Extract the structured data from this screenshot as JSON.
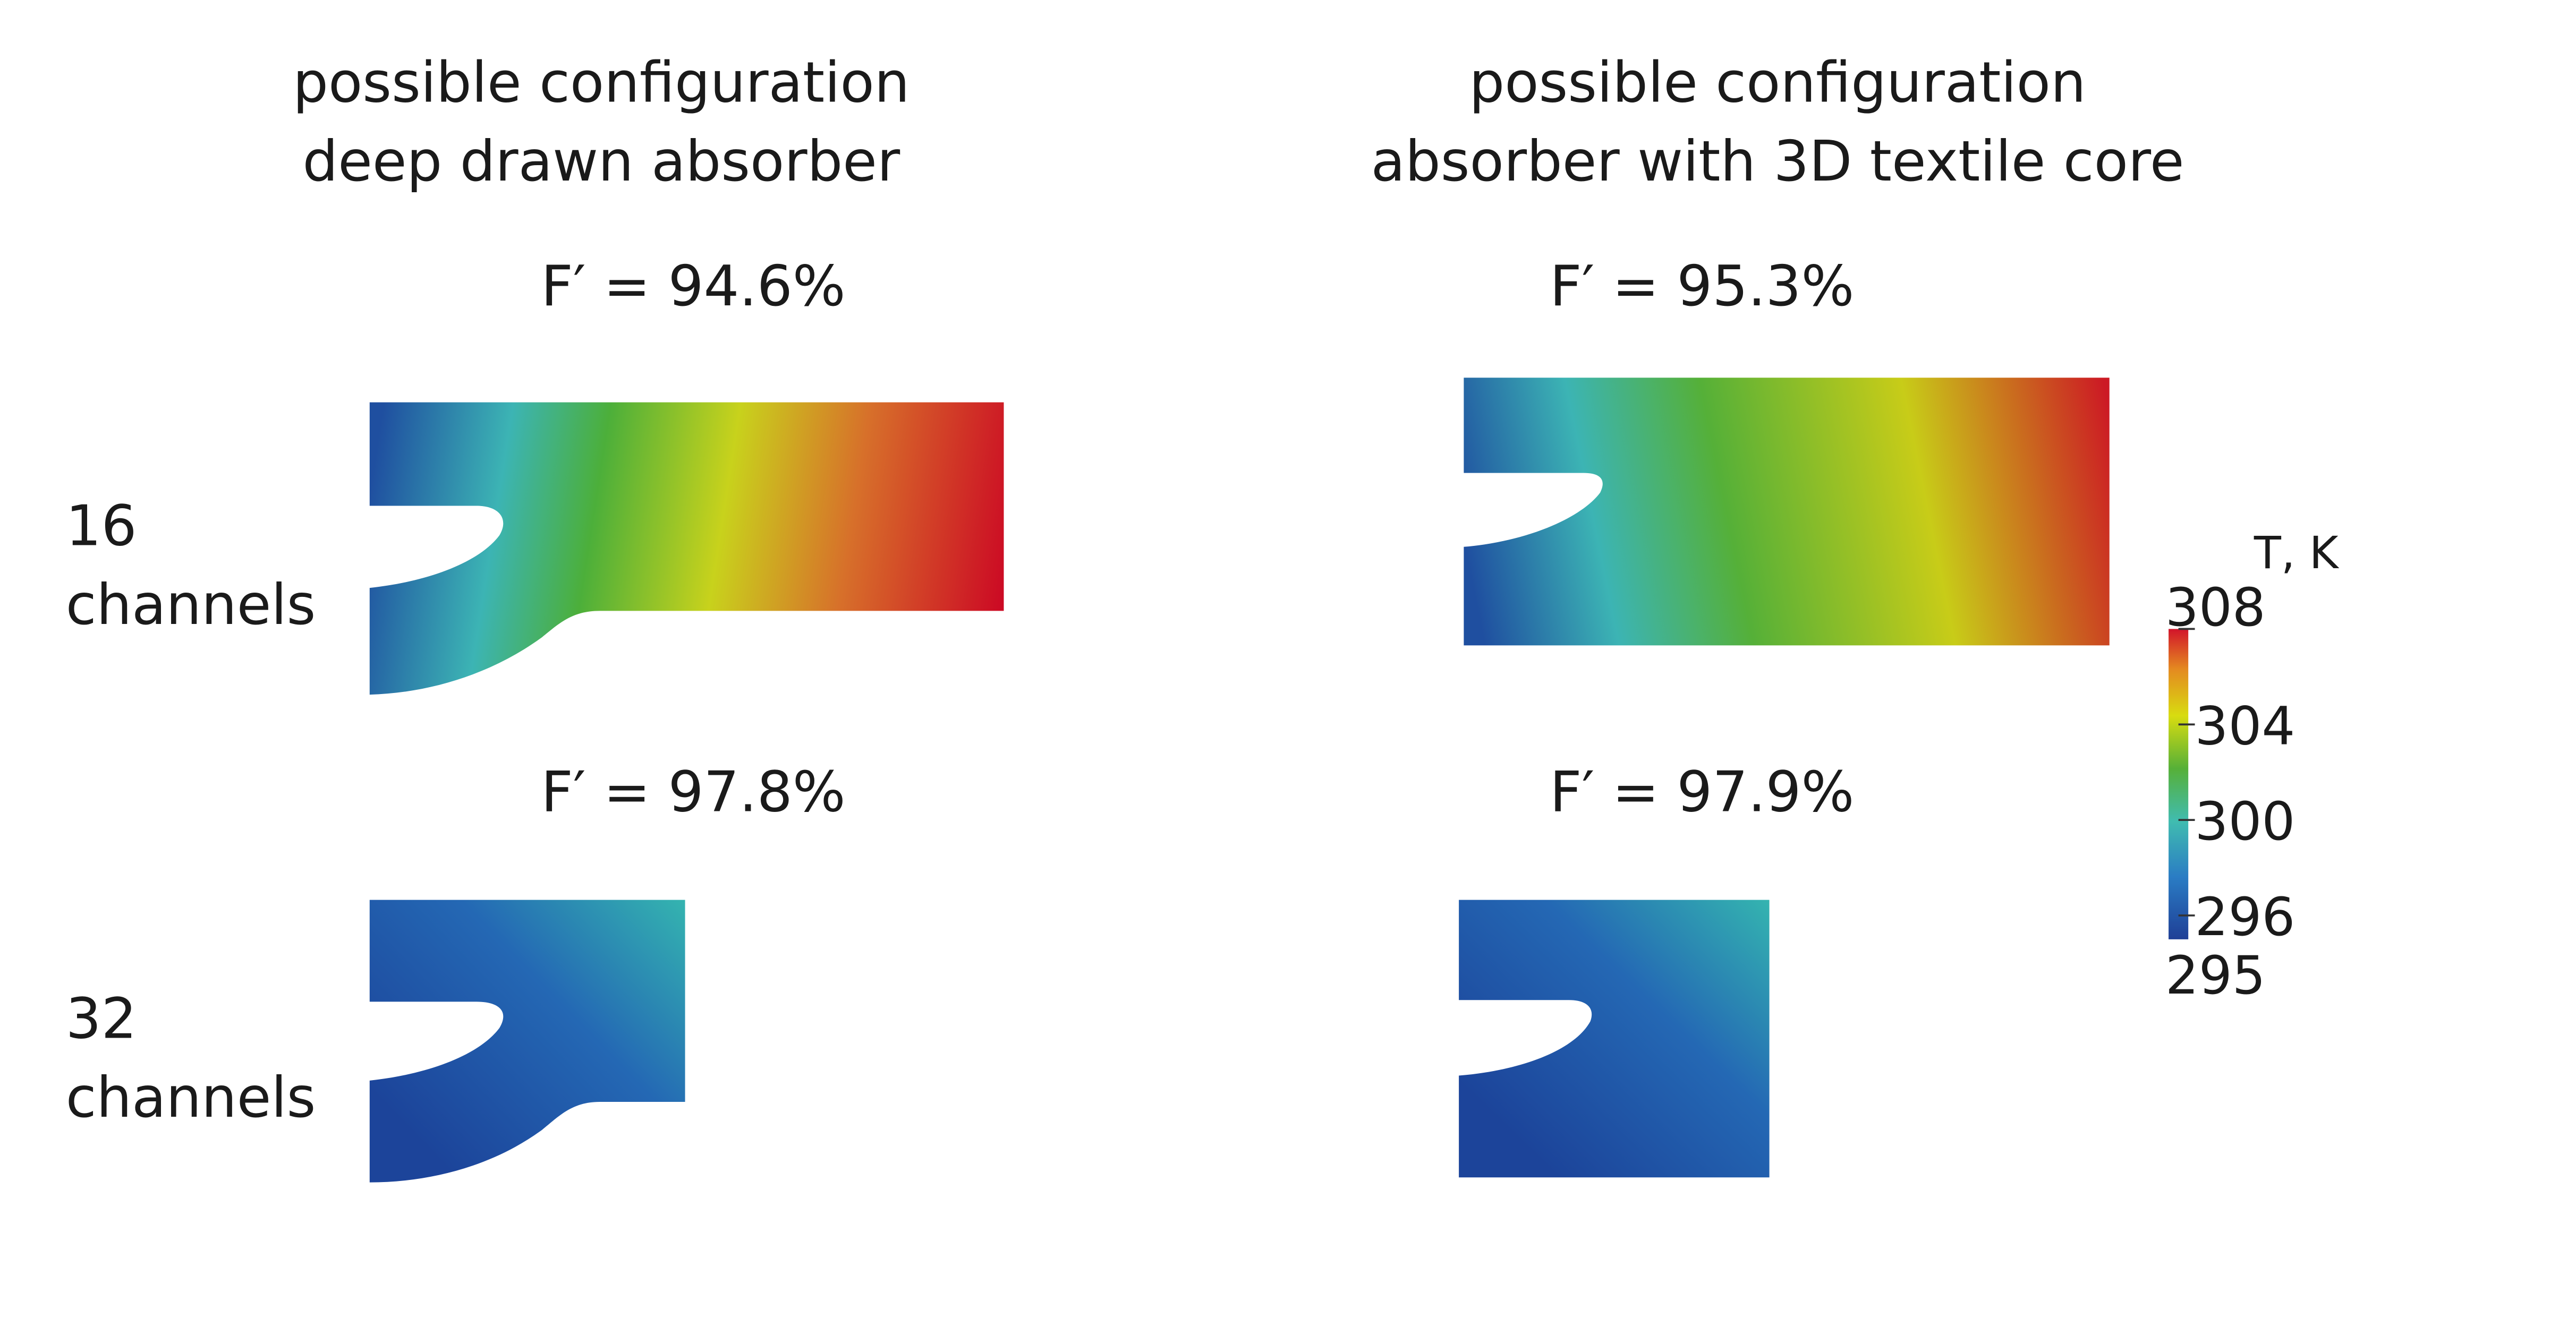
{
  "columns": [
    {
      "title_line1": "possible configuration",
      "title_line2": "deep drawn absorber"
    },
    {
      "title_line1": "possible configuration",
      "title_line2": "absorber with 3D textile core"
    }
  ],
  "rows": [
    {
      "label_line1": "16",
      "label_line2": "channels",
      "efficiency": [
        "F′ = 94.6%",
        "F′ = 95.3%"
      ]
    },
    {
      "label_line1": "32",
      "label_line2": "channels",
      "efficiency": [
        "F′ = 97.8%",
        "F′ = 97.9%"
      ]
    }
  ],
  "colorbar": {
    "title": "T, K",
    "range": [
      295,
      308
    ],
    "ticks": [
      308,
      304,
      300,
      296
    ]
  }
}
